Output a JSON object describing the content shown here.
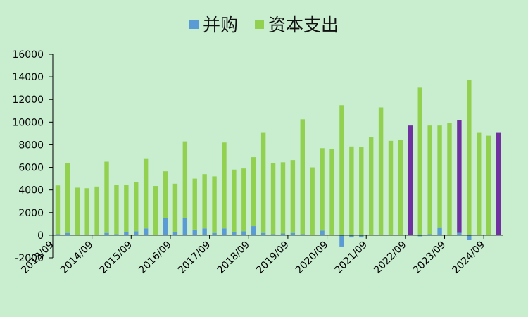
{
  "chart_data": {
    "type": "bar",
    "stacked": true,
    "legend_position": "top-center",
    "grid": false,
    "ylim": [
      -2000,
      16000
    ],
    "yticks": [
      -2000,
      0,
      2000,
      4000,
      6000,
      8000,
      10000,
      12000,
      14000,
      16000
    ],
    "x_tick_labels": [
      "2013/09",
      "2014/09",
      "2015/09",
      "2016/09",
      "2017/09",
      "2018/09",
      "2019/09",
      "2020/09",
      "2021/09",
      "2022/09",
      "2023/09",
      "2024/09"
    ],
    "series": [
      {
        "name": "并购",
        "color": "#5b9bd5",
        "values": [
          100,
          200,
          50,
          50,
          50,
          200,
          100,
          300,
          350,
          600,
          50,
          1500,
          250,
          1500,
          500,
          600,
          200,
          600,
          300,
          350,
          800,
          200,
          100,
          150,
          200,
          100,
          50,
          400,
          50,
          -1000,
          -200,
          -200,
          50,
          50,
          50,
          50,
          0,
          -100,
          100,
          700,
          50,
          200,
          -400,
          50,
          50,
          0
        ]
      },
      {
        "name": "资本支出",
        "color": "#92d050",
        "values": [
          4300,
          6200,
          4150,
          4100,
          4250,
          6300,
          4350,
          4150,
          4350,
          6200,
          4300,
          4150,
          4300,
          6800,
          4500,
          4800,
          5000,
          7600,
          5500,
          5550,
          6100,
          8850,
          6300,
          6300,
          6450,
          10150,
          5950,
          7300,
          7550,
          11500,
          7850,
          7800,
          8650,
          11250,
          8300,
          8350,
          0,
          13050,
          9600,
          9000,
          9900,
          0,
          13700,
          9000,
          8750,
          0
        ]
      }
    ],
    "highlight_bars": {
      "color": "#7030a0",
      "indices": [
        36,
        41,
        45
      ],
      "values": [
        9700,
        10150,
        9050
      ]
    }
  }
}
